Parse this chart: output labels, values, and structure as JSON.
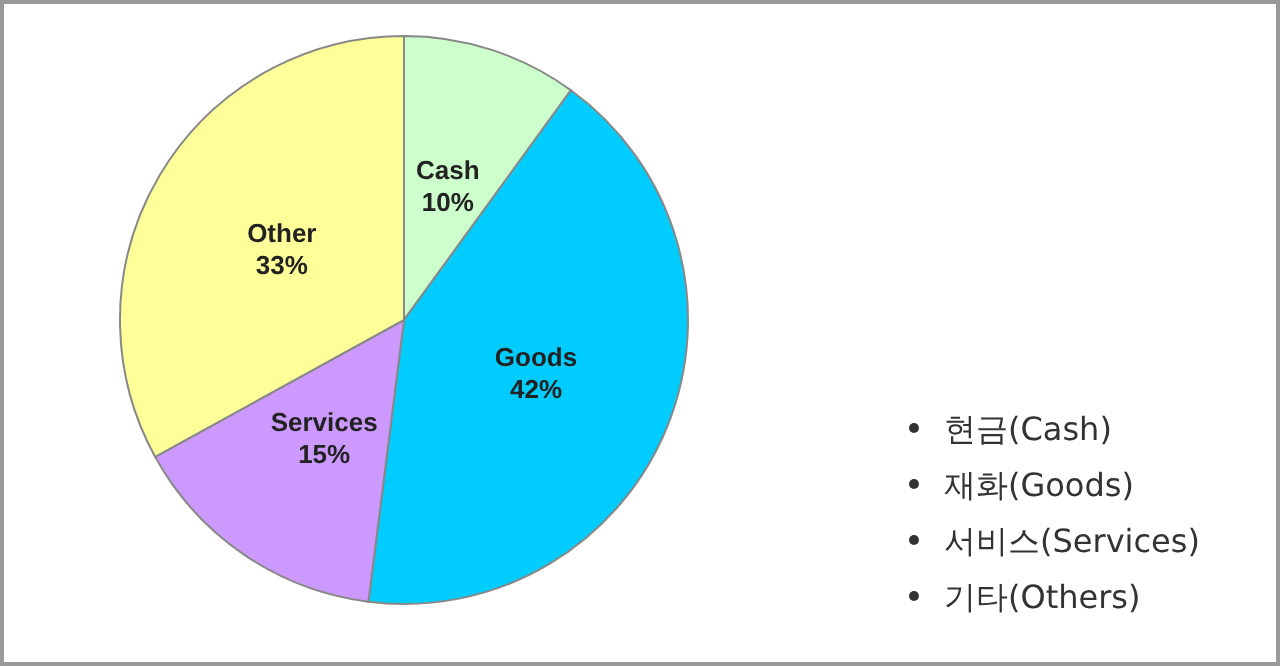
{
  "chart_data": {
    "type": "pie",
    "categories": [
      "Cash",
      "Goods",
      "Services",
      "Other"
    ],
    "values": [
      10,
      42,
      15,
      33
    ],
    "colors": [
      "#ccffcc",
      "#00ccff",
      "#cc99ff",
      "#ffff99"
    ],
    "value_labels": [
      "10%",
      "42%",
      "15%",
      "33%"
    ],
    "legend": false,
    "annotations": [
      "현금(Cash)",
      "재화(Goods)",
      "서비스(Services)",
      "기타(Others)"
    ]
  }
}
